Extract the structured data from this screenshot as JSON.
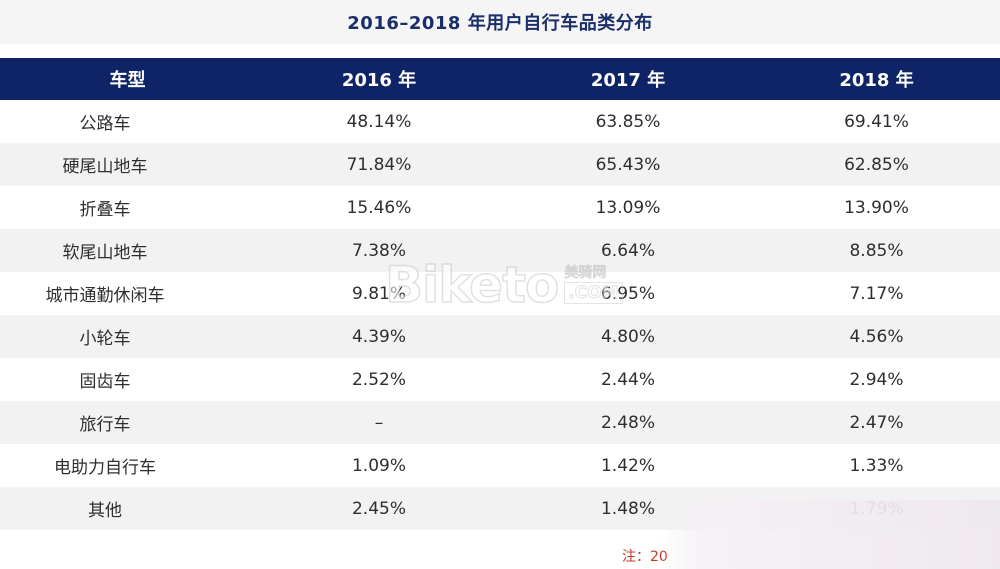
{
  "title": "2016–2018 年用户自行车品类分布",
  "table": {
    "headers": [
      "车型",
      "2016 年",
      "2017 年",
      "2018 年"
    ],
    "rows": [
      [
        "公路车",
        "48.14%",
        "63.85%",
        "69.41%"
      ],
      [
        "硬尾山地车",
        "71.84%",
        "65.43%",
        "62.85%"
      ],
      [
        "折叠车",
        "15.46%",
        "13.09%",
        "13.90%"
      ],
      [
        "软尾山地车",
        "7.38%",
        "6.64%",
        "8.85%"
      ],
      [
        "城市通勤休闲车",
        "9.81%",
        "6.95%",
        "7.17%"
      ],
      [
        "小轮车",
        "4.39%",
        "4.80%",
        "4.56%"
      ],
      [
        "固齿车",
        "2.52%",
        "2.44%",
        "2.94%"
      ],
      [
        "旅行车",
        "–",
        "2.48%",
        "2.47%"
      ],
      [
        "电助力自行车",
        "1.09%",
        "1.42%",
        "1.33%"
      ],
      [
        "其他",
        "2.45%",
        "1.48%",
        "1.79%"
      ]
    ]
  },
  "watermark": {
    "brand": "Biketo",
    "cn": "美骑网",
    "com": ".COM"
  },
  "note": "注：20"
}
